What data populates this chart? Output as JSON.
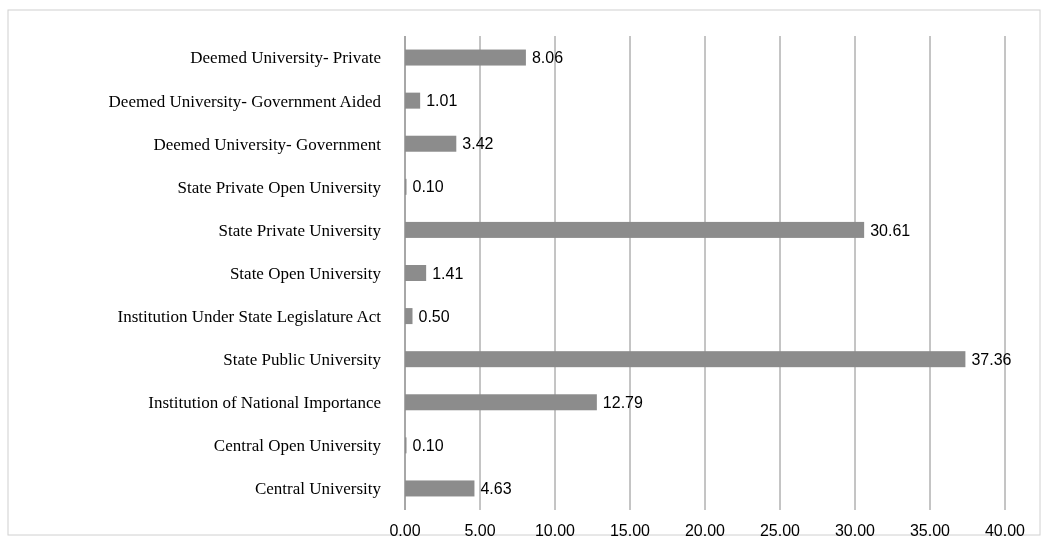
{
  "chart_data": {
    "type": "bar",
    "orientation": "horizontal",
    "categories": [
      "Deemed University- Private",
      "Deemed University- Government Aided",
      "Deemed University- Government",
      "State Private Open University",
      "State Private University",
      "State Open University",
      "Institution Under State Legislature Act",
      "State Public University",
      "Institution of National Importance",
      "Central Open University",
      "Central University"
    ],
    "values": [
      8.06,
      1.01,
      3.42,
      0.1,
      30.61,
      1.41,
      0.5,
      37.36,
      12.79,
      0.1,
      4.63
    ],
    "value_labels": [
      "8.06",
      "1.01",
      "3.42",
      "0.10",
      "30.61",
      "1.41",
      "0.50",
      "37.36",
      "12.79",
      "0.10",
      "4.63"
    ],
    "color": "#8c8c8c",
    "xlim": [
      0,
      40
    ],
    "xticks": [
      {
        "value": 0,
        "label": "0.00"
      },
      {
        "value": 5,
        "label": "5.00"
      },
      {
        "value": 10,
        "label": "10.00"
      },
      {
        "value": 15,
        "label": "15.00"
      },
      {
        "value": 20,
        "label": "20.00"
      },
      {
        "value": 25,
        "label": "25.00"
      },
      {
        "value": 30,
        "label": "30.00"
      },
      {
        "value": 35,
        "label": "35.00"
      },
      {
        "value": 40,
        "label": "40.00"
      }
    ],
    "grid": "x"
  }
}
